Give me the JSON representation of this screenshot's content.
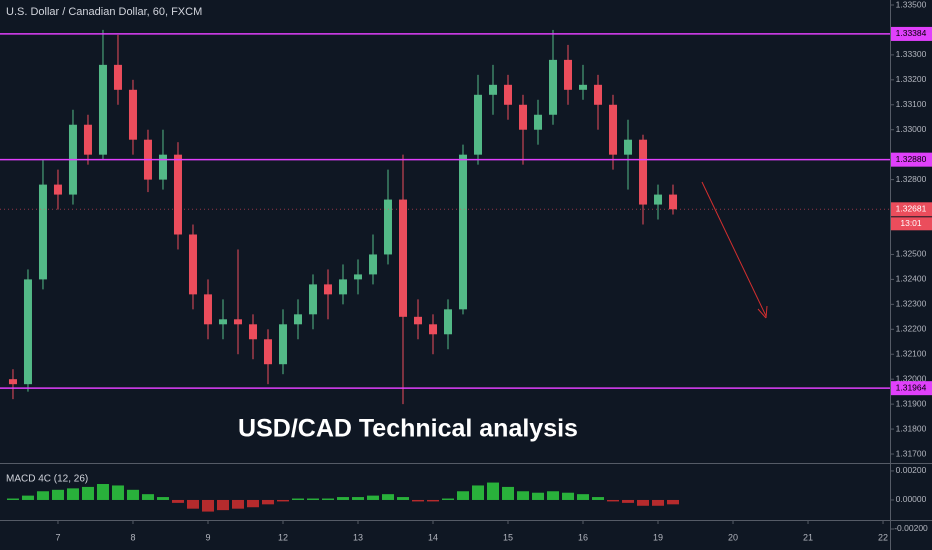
{
  "chart_data": {
    "type": "candlestick",
    "title": "U.S. Dollar / Canadian Dollar, 60, FXCM",
    "annotation": "USD/CAD Technical analysis",
    "up_color": "#53b987",
    "down_color": "#eb4d5c",
    "x": [
      -0.6,
      -0.4,
      -0.2,
      0,
      0.2,
      0.4,
      0.6,
      0.8,
      1,
      1.2,
      1.4,
      1.6,
      1.8,
      2,
      2.2,
      2.4,
      2.6,
      2.8,
      3,
      3.2,
      3.4,
      3.6,
      3.8,
      4,
      4.2,
      4.4,
      4.6,
      4.8,
      5,
      5.2,
      5.4,
      5.6,
      5.8,
      6,
      6.2,
      6.4,
      6.6,
      6.8,
      7,
      7.2,
      7.4,
      7.6,
      7.8,
      8,
      8.2
    ],
    "open": [
      1.32,
      1.3198,
      1.324,
      1.3278,
      1.3274,
      1.3302,
      1.329,
      1.3326,
      1.3316,
      1.3296,
      1.328,
      1.329,
      1.3258,
      1.3234,
      1.3222,
      1.3224,
      1.3222,
      1.3216,
      1.3206,
      1.3222,
      1.3226,
      1.3238,
      1.3234,
      1.324,
      1.3242,
      1.325,
      1.3272,
      1.3225,
      1.3222,
      1.3218,
      1.3228,
      1.329,
      1.3314,
      1.3318,
      1.331,
      1.33,
      1.3306,
      1.3328,
      1.3316,
      1.3318,
      1.331,
      1.329,
      1.3296,
      1.327,
      1.3274
    ],
    "high": [
      1.3204,
      1.3244,
      1.3288,
      1.3284,
      1.3308,
      1.3306,
      1.334,
      1.3338,
      1.332,
      1.33,
      1.33,
      1.3295,
      1.3262,
      1.324,
      1.3232,
      1.3252,
      1.3226,
      1.322,
      1.3228,
      1.3232,
      1.3242,
      1.3244,
      1.3246,
      1.3248,
      1.3258,
      1.3284,
      1.329,
      1.3232,
      1.3226,
      1.3232,
      1.3294,
      1.3322,
      1.3326,
      1.3322,
      1.3314,
      1.3312,
      1.334,
      1.3334,
      1.3326,
      1.3322,
      1.3314,
      1.3304,
      1.3298,
      1.3278,
      1.3278
    ],
    "low": [
      1.3192,
      1.3195,
      1.3236,
      1.3268,
      1.327,
      1.3286,
      1.3288,
      1.331,
      1.329,
      1.3275,
      1.3276,
      1.3252,
      1.3228,
      1.3216,
      1.3216,
      1.321,
      1.3208,
      1.3198,
      1.3202,
      1.3216,
      1.322,
      1.3224,
      1.323,
      1.3234,
      1.3238,
      1.3246,
      1.319,
      1.3216,
      1.321,
      1.3212,
      1.3226,
      1.3286,
      1.3306,
      1.3304,
      1.3286,
      1.3294,
      1.3302,
      1.331,
      1.3312,
      1.33,
      1.3284,
      1.3276,
      1.3262,
      1.3264,
      1.3266
    ],
    "close": [
      1.3198,
      1.324,
      1.3278,
      1.3274,
      1.3302,
      1.329,
      1.3326,
      1.3316,
      1.3296,
      1.328,
      1.329,
      1.3258,
      1.3234,
      1.3222,
      1.3224,
      1.3222,
      1.3216,
      1.3206,
      1.3222,
      1.3226,
      1.3238,
      1.3234,
      1.324,
      1.3242,
      1.325,
      1.3272,
      1.3225,
      1.3222,
      1.3218,
      1.3228,
      1.329,
      1.3314,
      1.3318,
      1.331,
      1.33,
      1.3306,
      1.3328,
      1.3316,
      1.3318,
      1.331,
      1.329,
      1.3296,
      1.327,
      1.3274,
      1.32681
    ],
    "xlim": [
      -0.773,
      11.093
    ],
    "xticks": [
      {
        "value": 0,
        "label": "7"
      },
      {
        "value": 1,
        "label": "8"
      },
      {
        "value": 2,
        "label": "9"
      },
      {
        "value": 3,
        "label": "12"
      },
      {
        "value": 4,
        "label": "13"
      },
      {
        "value": 5,
        "label": "14"
      },
      {
        "value": 6,
        "label": "15"
      },
      {
        "value": 7,
        "label": "16"
      },
      {
        "value": 8,
        "label": "19"
      },
      {
        "value": 9,
        "label": "20"
      },
      {
        "value": 10,
        "label": "21"
      },
      {
        "value": 11,
        "label": "22"
      }
    ],
    "ylim": [
      1.31668,
      1.3352
    ],
    "yticks": [
      {
        "value": 1.335,
        "label": "1.33500"
      },
      {
        "value": 1.333,
        "label": "1.33300"
      },
      {
        "value": 1.332,
        "label": "1.33200"
      },
      {
        "value": 1.331,
        "label": "1.33100"
      },
      {
        "value": 1.33,
        "label": "1.33000"
      },
      {
        "value": 1.328,
        "label": "1.32800"
      },
      {
        "value": 1.325,
        "label": "1.32500"
      },
      {
        "value": 1.324,
        "label": "1.32400"
      },
      {
        "value": 1.323,
        "label": "1.32300"
      },
      {
        "value": 1.322,
        "label": "1.32200"
      },
      {
        "value": 1.321,
        "label": "1.32100"
      },
      {
        "value": 1.32,
        "label": "1.32000"
      },
      {
        "value": 1.319,
        "label": "1.31900"
      },
      {
        "value": 1.318,
        "label": "1.31800"
      },
      {
        "value": 1.317,
        "label": "1.31700"
      }
    ],
    "levels": [
      {
        "value": 1.33384,
        "label": "1.33384"
      },
      {
        "value": 1.3288,
        "label": "1.32880"
      },
      {
        "value": 1.31964,
        "label": "1.31964"
      }
    ],
    "level_color": "#e040fb",
    "last_price": {
      "value": 1.32681,
      "label": "1.32681"
    },
    "countdown": "13:01",
    "macd": {
      "name": "MACD 4C (12, 26)",
      "up_color": "#2ecc40",
      "down_color": "#d32f2f",
      "values": [
        0.0001,
        0.0003,
        0.0006,
        0.0007,
        0.0008,
        0.0009,
        0.0011,
        0.001,
        0.0007,
        0.0004,
        0.0002,
        -0.0002,
        -0.0006,
        -0.0008,
        -0.0007,
        -0.0006,
        -0.0005,
        -0.0003,
        -0.0001,
        0.0001,
        0.0001,
        0.0001,
        0.0002,
        0.0002,
        0.0003,
        0.0004,
        0.0002,
        -0.0001,
        -0.0001,
        0.0001,
        0.0006,
        0.001,
        0.0012,
        0.0009,
        0.0006,
        0.0005,
        0.0006,
        0.0005,
        0.0004,
        0.0002,
        -0.0001,
        -0.0002,
        -0.0004,
        -0.0004,
        -0.0003
      ],
      "ylim": [
        -0.00138,
        0.00241
      ],
      "yticks": [
        {
          "value": 0.002,
          "label": "0.00200"
        },
        {
          "value": 0,
          "label": "0.00000"
        },
        {
          "value": -0.002,
          "label": "-0.00200"
        }
      ]
    }
  }
}
